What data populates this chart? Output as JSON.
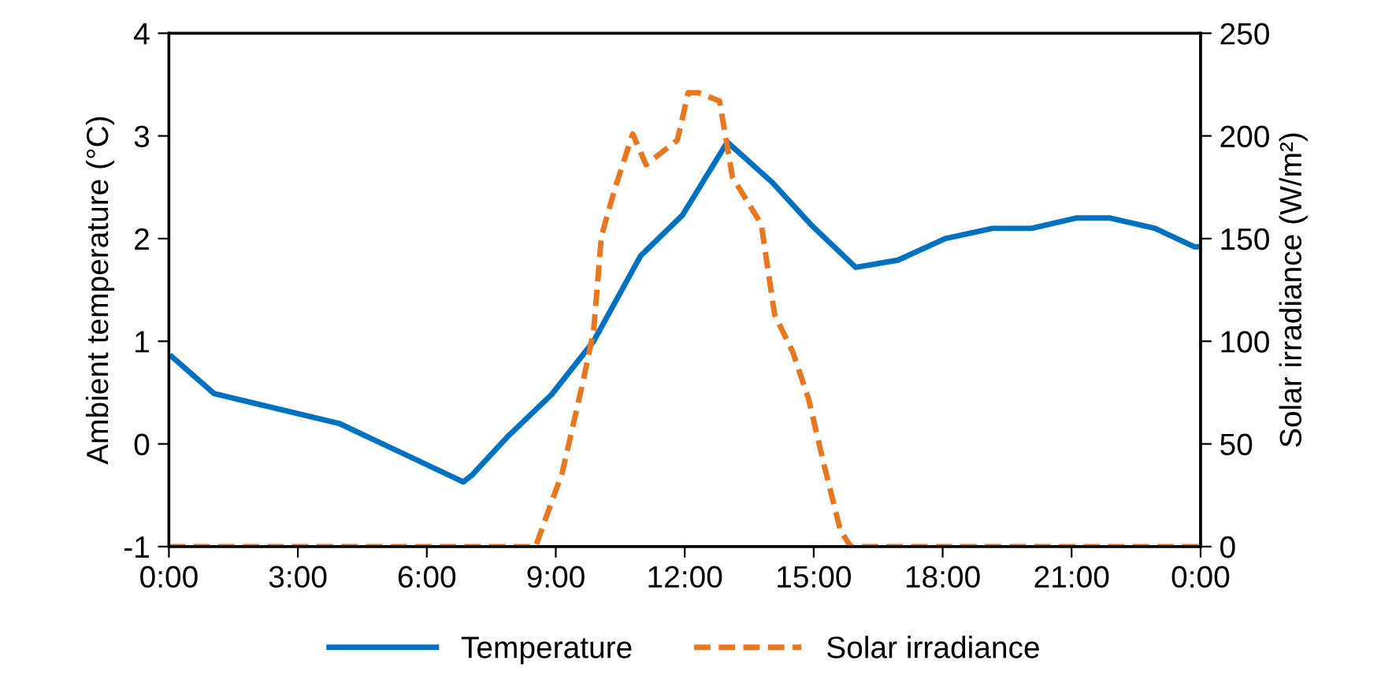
{
  "chart_data": {
    "type": "line",
    "xlabel": null,
    "ylabel": "Ambient temperature (°C)",
    "y2label": "Solar irradiance (W/m²)",
    "xlim": [
      0,
      24
    ],
    "xticks": [
      {
        "value": 0,
        "label": "0:00"
      },
      {
        "value": 3,
        "label": "3:00"
      },
      {
        "value": 6,
        "label": "6:00"
      },
      {
        "value": 9,
        "label": "9:00"
      },
      {
        "value": 12,
        "label": "12:00"
      },
      {
        "value": 15,
        "label": "15:00"
      },
      {
        "value": 18,
        "label": "18:00"
      },
      {
        "value": 21,
        "label": "21:00"
      },
      {
        "value": 24,
        "label": "0:00"
      }
    ],
    "ylim": [
      -1,
      4
    ],
    "yticks": [
      -1,
      0,
      1,
      2,
      3,
      4
    ],
    "y2lim": [
      0,
      250
    ],
    "y2ticks": [
      0,
      50,
      100,
      150,
      200,
      250
    ],
    "grid": false,
    "legend": "bottom",
    "marker": "none",
    "series": [
      {
        "name": "Temperature",
        "color": "#0070c0",
        "line_style": "solid",
        "x": [
          0.07,
          1.05,
          3.96,
          6.85,
          7.06,
          7.9,
          8.9,
          9.88,
          10.97,
          11.95,
          12.99,
          14.03,
          14.95,
          15.98,
          16.96,
          18.06,
          19.16,
          20.07,
          21.1,
          21.9,
          22.94,
          23.86,
          24
        ],
        "values": [
          0.85,
          0.49,
          0.2,
          -0.37,
          -0.3,
          0.08,
          0.48,
          1.0,
          1.83,
          2.23,
          2.94,
          2.55,
          2.13,
          1.72,
          1.79,
          2.0,
          2.1,
          2.1,
          2.2,
          2.2,
          2.1,
          1.92,
          1.92
        ]
      },
      {
        "name": "Solar irradiance",
        "color": "#e87722",
        "line_style": "dashed",
        "axis": "y2",
        "x": [
          0,
          8.53,
          9.15,
          9.63,
          9.88,
          10.06,
          10.37,
          10.79,
          11.1,
          11.83,
          12.08,
          12.32,
          12.81,
          13.11,
          13.78,
          14.09,
          14.51,
          14.88,
          15.25,
          15.62,
          15.86,
          24
        ],
        "values": [
          0,
          0,
          36,
          80,
          105,
          151,
          174,
          201,
          186,
          198,
          221,
          221,
          217,
          180,
          157,
          113,
          95,
          72,
          39,
          8,
          0,
          0
        ]
      }
    ]
  }
}
